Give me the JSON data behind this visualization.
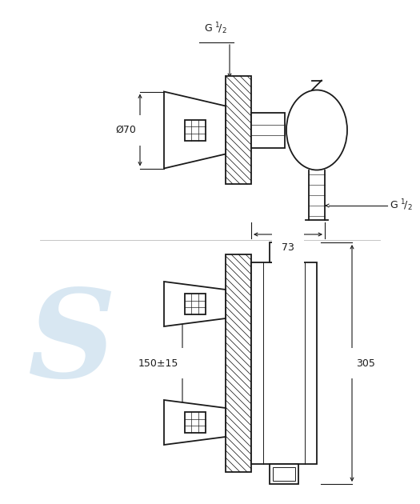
{
  "bg_color": "#ffffff",
  "line_color": "#1a1a1a",
  "watermark_color": "#b8d4e8",
  "fig_w": 5.25,
  "fig_h": 6.3,
  "dpi": 100
}
